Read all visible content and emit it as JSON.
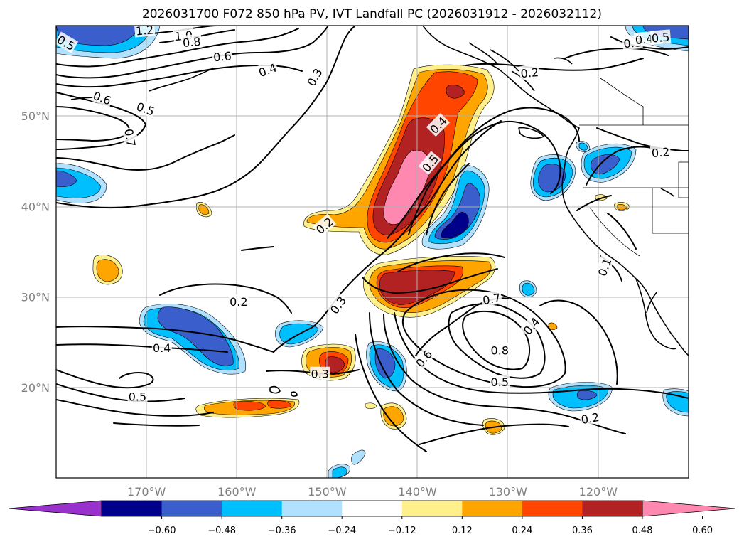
{
  "title": "2026031700 F072 850 hPa PV, IVT Landfall PC (2026031912 - 2026032112)",
  "map": {
    "lon_range": [
      -180,
      -110
    ],
    "lat_range": [
      10,
      60
    ],
    "lat_labels": [
      {
        "lat": 50,
        "text": "50°N"
      },
      {
        "lat": 40,
        "text": "40°N"
      },
      {
        "lat": 30,
        "text": "30°N"
      },
      {
        "lat": 20,
        "text": "20°N"
      }
    ],
    "lon_labels": [
      {
        "lon": -170,
        "text": "170°W"
      },
      {
        "lon": -160,
        "text": "160°W"
      },
      {
        "lon": -150,
        "text": "150°W"
      },
      {
        "lon": -140,
        "text": "140°W"
      },
      {
        "lon": -130,
        "text": "130°W"
      },
      {
        "lon": -120,
        "text": "120°W"
      }
    ]
  },
  "colorbar": {
    "colors": [
      "#9932cc",
      "#00008b",
      "#3a5fcd",
      "#00bfff",
      "#b0e2ff",
      "#ffffff",
      "#fff08c",
      "#ffa500",
      "#ff4500",
      "#b22222",
      "#ff88b0"
    ],
    "ticks": [
      "−0.60",
      "−0.48",
      "−0.36",
      "−0.24",
      "−0.12",
      "0.12",
      "0.24",
      "0.36",
      "0.48",
      "0.60"
    ]
  },
  "contour_labels": [
    {
      "text": "1.2",
      "lon": -170.2,
      "lat": 59.5,
      "rot": -5
    },
    {
      "text": "1.0",
      "lon": -165.9,
      "lat": 58.9,
      "rot": -5
    },
    {
      "text": "0.8",
      "lon": -165.0,
      "lat": 58.2,
      "rot": -5
    },
    {
      "text": "0.6",
      "lon": -161.6,
      "lat": 56.6,
      "rot": -5
    },
    {
      "text": "0.4",
      "lon": -156.6,
      "lat": 55.1,
      "rot": -20
    },
    {
      "text": "0.3",
      "lon": -151.4,
      "lat": 54.3,
      "rot": -60
    },
    {
      "text": "0.5",
      "lon": -178.9,
      "lat": 58.1,
      "rot": 30
    },
    {
      "text": "0.6",
      "lon": -174.9,
      "lat": 52.0,
      "rot": 20
    },
    {
      "text": "0.5",
      "lon": -170.1,
      "lat": 50.8,
      "rot": 20
    },
    {
      "text": "0.7",
      "lon": -171.8,
      "lat": 47.6,
      "rot": 80
    },
    {
      "text": "0.2",
      "lon": -150.3,
      "lat": 37.9,
      "rot": -40
    },
    {
      "text": "0.2",
      "lon": -159.8,
      "lat": 29.5,
      "rot": 0
    },
    {
      "text": "0.3",
      "lon": -148.8,
      "lat": 29.1,
      "rot": -55
    },
    {
      "text": "0.4",
      "lon": -168.3,
      "lat": 24.4,
      "rot": 0
    },
    {
      "text": "0.3",
      "lon": -150.8,
      "lat": 21.5,
      "rot": 0
    },
    {
      "text": "0.5",
      "lon": -171.0,
      "lat": 19.0,
      "rot": 0
    },
    {
      "text": "0.4",
      "lon": -137.7,
      "lat": 49.0,
      "rot": -45
    },
    {
      "text": "0.5",
      "lon": -138.6,
      "lat": 44.8,
      "rot": -50
    },
    {
      "text": "0.2",
      "lon": -127.6,
      "lat": 54.8,
      "rot": -5
    },
    {
      "text": "0.3",
      "lon": -116.2,
      "lat": 58.1,
      "rot": -5
    },
    {
      "text": "0.4",
      "lon": -114.9,
      "lat": 58.5,
      "rot": -5
    },
    {
      "text": "0.5",
      "lon": -113.1,
      "lat": 58.7,
      "rot": -5
    },
    {
      "text": "0.2",
      "lon": -113.1,
      "lat": 46.0,
      "rot": -5
    },
    {
      "text": "0.7",
      "lon": -131.8,
      "lat": 29.8,
      "rot": -10
    },
    {
      "text": "0.4",
      "lon": -127.4,
      "lat": 26.8,
      "rot": -50
    },
    {
      "text": "0.8",
      "lon": -130.9,
      "lat": 24.1,
      "rot": 0
    },
    {
      "text": "0.6",
      "lon": -139.3,
      "lat": 23.2,
      "rot": -50
    },
    {
      "text": "0.5",
      "lon": -130.9,
      "lat": 20.6,
      "rot": 0
    },
    {
      "text": "0.2",
      "lon": -120.9,
      "lat": 16.6,
      "rot": -10
    },
    {
      "text": "0.1",
      "lon": -119.3,
      "lat": 33.3,
      "rot": -70
    }
  ]
}
